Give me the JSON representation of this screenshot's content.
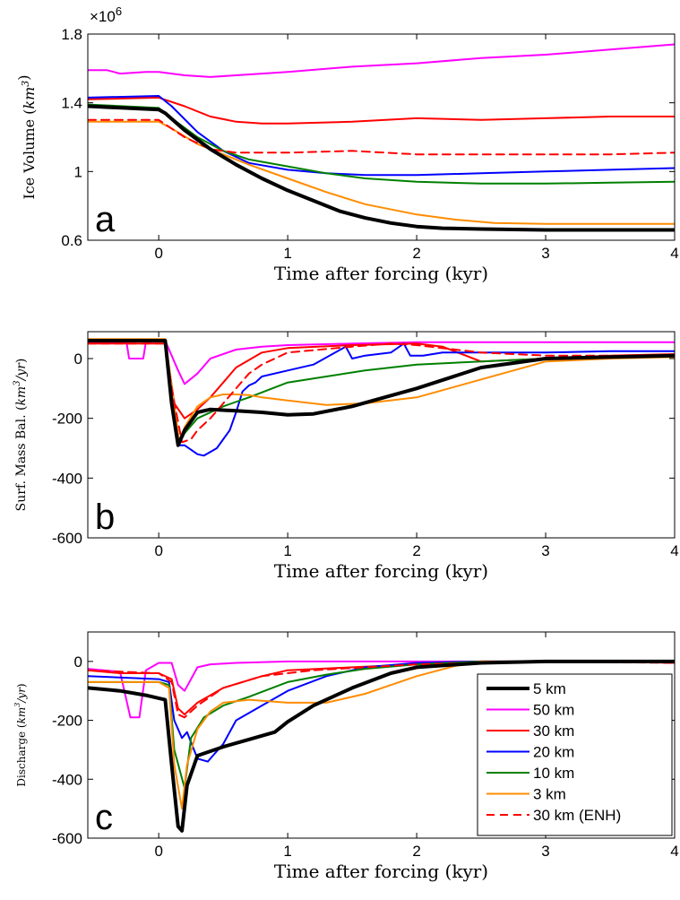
{
  "chart_data": [
    {
      "type": "line",
      "panel_label": "a",
      "xlabel": "Time after forcing (kyr)",
      "ylabel": {
        "pre": "Ice Volume (",
        "unit": "km",
        "sup": "3",
        "post": ")"
      },
      "multiplier": {
        "base": "×10",
        "exp": "6"
      },
      "xlim": [
        -0.55,
        4
      ],
      "ylim": [
        0.6,
        1.8
      ],
      "xticks": [
        0,
        1,
        2,
        3,
        4
      ],
      "xtick_labels": [
        "0",
        "1",
        "2",
        "3",
        "4"
      ],
      "yticks": [
        0.6,
        1.0,
        1.4,
        1.8
      ],
      "ytick_labels": [
        "0.6",
        "1",
        "1.4",
        "1.8"
      ],
      "grid": false,
      "series": [
        {
          "name": "5 km",
          "color": "#000000",
          "dash": false,
          "width": 4,
          "x": [
            -0.55,
            0,
            0.05,
            0.2,
            0.4,
            0.6,
            0.8,
            1.0,
            1.2,
            1.4,
            1.6,
            1.8,
            2.0,
            2.2,
            2.5,
            3.0,
            3.5,
            4.0
          ],
          "y": [
            1.38,
            1.36,
            1.34,
            1.24,
            1.13,
            1.04,
            0.96,
            0.89,
            0.83,
            0.77,
            0.73,
            0.7,
            0.68,
            0.67,
            0.665,
            0.66,
            0.66,
            0.66
          ]
        },
        {
          "name": "50 km",
          "color": "#ff00ff",
          "dash": false,
          "width": 2,
          "x": [
            -0.55,
            -0.4,
            -0.3,
            -0.1,
            0,
            0.2,
            0.4,
            0.6,
            1.0,
            1.5,
            2.0,
            2.5,
            3.0,
            3.5,
            4.0
          ],
          "y": [
            1.59,
            1.59,
            1.57,
            1.58,
            1.58,
            1.56,
            1.55,
            1.56,
            1.58,
            1.61,
            1.63,
            1.66,
            1.68,
            1.71,
            1.74
          ]
        },
        {
          "name": "30 km",
          "color": "#ff0000",
          "dash": false,
          "width": 2,
          "x": [
            -0.55,
            0,
            0.2,
            0.4,
            0.6,
            0.8,
            1.0,
            1.5,
            2.0,
            2.5,
            3.0,
            3.5,
            4.0
          ],
          "y": [
            1.42,
            1.43,
            1.38,
            1.32,
            1.29,
            1.28,
            1.28,
            1.29,
            1.31,
            1.3,
            1.31,
            1.32,
            1.32
          ]
        },
        {
          "name": "20 km",
          "color": "#0000ff",
          "dash": false,
          "width": 2,
          "x": [
            -0.55,
            0,
            0.1,
            0.3,
            0.5,
            0.7,
            1.0,
            1.3,
            1.6,
            2.0,
            2.5,
            3.0,
            3.5,
            4.0
          ],
          "y": [
            1.43,
            1.44,
            1.38,
            1.23,
            1.12,
            1.05,
            1.01,
            0.99,
            0.98,
            0.98,
            0.99,
            1.0,
            1.01,
            1.02
          ]
        },
        {
          "name": "10 km",
          "color": "#008000",
          "dash": false,
          "width": 2,
          "x": [
            -0.55,
            0,
            0.1,
            0.3,
            0.5,
            0.7,
            1.0,
            1.3,
            1.6,
            2.0,
            2.5,
            3.0,
            3.5,
            4.0
          ],
          "y": [
            1.39,
            1.37,
            1.31,
            1.2,
            1.12,
            1.07,
            1.03,
            0.99,
            0.96,
            0.94,
            0.93,
            0.93,
            0.935,
            0.94
          ]
        },
        {
          "name": "3 km",
          "color": "#ff8c00",
          "dash": false,
          "width": 2,
          "x": [
            -0.55,
            0,
            0.1,
            0.3,
            0.5,
            0.7,
            1.0,
            1.3,
            1.6,
            2.0,
            2.3,
            2.6,
            3.0,
            3.5,
            4.0
          ],
          "y": [
            1.29,
            1.29,
            1.25,
            1.16,
            1.1,
            1.04,
            0.96,
            0.88,
            0.81,
            0.75,
            0.72,
            0.7,
            0.695,
            0.695,
            0.695
          ]
        },
        {
          "name": "30 km (ENH)",
          "color": "#ff0000",
          "dash": true,
          "width": 2,
          "x": [
            -0.55,
            0,
            0.2,
            0.4,
            0.6,
            1.0,
            1.5,
            2.0,
            2.5,
            3.0,
            3.5,
            4.0
          ],
          "y": [
            1.3,
            1.3,
            1.2,
            1.13,
            1.11,
            1.11,
            1.12,
            1.1,
            1.1,
            1.1,
            1.1,
            1.11
          ]
        }
      ]
    },
    {
      "type": "line",
      "panel_label": "b",
      "xlabel": "Time after forcing (kyr)",
      "ylabel": {
        "pre": "Surf. Mass Bal. (",
        "unit": "km",
        "sup": "3",
        "post": "/yr)"
      },
      "xlim": [
        -0.55,
        4
      ],
      "ylim": [
        -600,
        90
      ],
      "xticks": [
        0,
        1,
        2,
        3,
        4
      ],
      "xtick_labels": [
        "0",
        "1",
        "2",
        "3",
        "4"
      ],
      "yticks": [
        -600,
        -400,
        -200,
        0
      ],
      "ytick_labels": [
        "-600",
        "-400",
        "-200",
        "0"
      ],
      "grid": false,
      "series": [
        {
          "name": "5 km",
          "color": "#000000",
          "dash": false,
          "width": 4,
          "x": [
            -0.55,
            0.05,
            0.1,
            0.15,
            0.2,
            0.3,
            0.4,
            0.6,
            0.8,
            1.0,
            1.2,
            1.5,
            2.0,
            2.5,
            3.0,
            3.5,
            4.0
          ],
          "y": [
            60,
            60,
            -150,
            -290,
            -240,
            -180,
            -170,
            -175,
            -180,
            -188,
            -185,
            -160,
            -100,
            -30,
            0,
            5,
            10
          ]
        },
        {
          "name": "50 km",
          "color": "#ff00ff",
          "dash": false,
          "width": 2,
          "x": [
            -0.55,
            -0.25,
            -0.23,
            -0.12,
            -0.1,
            0.05,
            0.15,
            0.2,
            0.3,
            0.4,
            0.6,
            0.8,
            1.0,
            1.5,
            2.0,
            2.5,
            3.0,
            3.5,
            4.0
          ],
          "y": [
            55,
            55,
            0,
            0,
            55,
            60,
            -40,
            -85,
            -50,
            0,
            30,
            40,
            45,
            50,
            55,
            55,
            55,
            55,
            55
          ]
        },
        {
          "name": "30 km",
          "color": "#ff0000",
          "dash": false,
          "width": 2,
          "x": [
            -0.55,
            0.05,
            0.12,
            0.2,
            0.3,
            0.4,
            0.5,
            0.6,
            0.8,
            1.0,
            1.5,
            2.0,
            2.2,
            2.5,
            3.0,
            3.5,
            4.0
          ],
          "y": [
            50,
            50,
            -150,
            -200,
            -170,
            -130,
            -80,
            -30,
            20,
            35,
            45,
            50,
            40,
            -10,
            0,
            10,
            15
          ]
        },
        {
          "name": "20 km",
          "color": "#0000ff",
          "dash": false,
          "width": 2,
          "x": [
            -0.55,
            0.05,
            0.12,
            0.16,
            0.2,
            0.3,
            0.35,
            0.45,
            0.5,
            0.55,
            0.6,
            0.65,
            0.7,
            0.75,
            0.8,
            1.0,
            1.2,
            1.45,
            1.5,
            1.6,
            1.8,
            1.9,
            1.95,
            2.05,
            2.2,
            2.5,
            3.0,
            3.5,
            4.0
          ],
          "y": [
            60,
            60,
            -150,
            -290,
            -290,
            -320,
            -325,
            -300,
            -270,
            -240,
            -180,
            -110,
            -90,
            -80,
            -60,
            -40,
            -20,
            40,
            0,
            10,
            20,
            50,
            10,
            10,
            20,
            20,
            20,
            25,
            25
          ]
        },
        {
          "name": "10 km",
          "color": "#008000",
          "dash": false,
          "width": 2,
          "x": [
            -0.55,
            0.05,
            0.12,
            0.16,
            0.2,
            0.3,
            0.5,
            0.7,
            1.0,
            1.3,
            1.6,
            2.0,
            2.5,
            3.0,
            3.5,
            4.0
          ],
          "y": [
            60,
            60,
            -180,
            -285,
            -250,
            -200,
            -160,
            -130,
            -80,
            -60,
            -40,
            -20,
            -10,
            0,
            5,
            10
          ]
        },
        {
          "name": "3 km",
          "color": "#ff8c00",
          "dash": false,
          "width": 2,
          "x": [
            -0.55,
            0.05,
            0.12,
            0.16,
            0.2,
            0.3,
            0.4,
            0.5,
            0.6,
            0.7,
            0.8,
            1.0,
            1.3,
            1.6,
            2.0,
            2.5,
            3.0,
            3.5,
            4.0
          ],
          "y": [
            65,
            65,
            -150,
            -285,
            -230,
            -160,
            -130,
            -120,
            -120,
            -122,
            -130,
            -140,
            -155,
            -150,
            -130,
            -70,
            -10,
            0,
            5
          ]
        },
        {
          "name": "30 km (ENH)",
          "color": "#ff0000",
          "dash": true,
          "width": 2,
          "x": [
            -0.55,
            0.05,
            0.1,
            0.18,
            0.25,
            0.3,
            0.4,
            0.5,
            0.6,
            0.7,
            0.8,
            1.0,
            1.5,
            1.8,
            2.0,
            2.5,
            3.0,
            3.5,
            4.0
          ],
          "y": [
            50,
            50,
            -100,
            -280,
            -270,
            -240,
            -200,
            -150,
            -100,
            -50,
            -20,
            20,
            40,
            50,
            45,
            20,
            10,
            10,
            10
          ]
        }
      ]
    },
    {
      "type": "line",
      "panel_label": "c",
      "xlabel": "Time after forcing (kyr)",
      "ylabel": {
        "pre": "Discharge (",
        "unit": "km",
        "sup": "3",
        "post": "/yr)"
      },
      "xlim": [
        -0.55,
        4
      ],
      "ylim": [
        -600,
        100
      ],
      "xticks": [
        0,
        1,
        2,
        3,
        4
      ],
      "xtick_labels": [
        "0",
        "1",
        "2",
        "3",
        "4"
      ],
      "yticks": [
        -600,
        -400,
        -200,
        0
      ],
      "ytick_labels": [
        "-600",
        "-400",
        "-200",
        "0"
      ],
      "grid": false,
      "legend_position": "bottom-right",
      "series": [
        {
          "name": "5 km",
          "color": "#000000",
          "dash": false,
          "width": 4,
          "x": [
            -0.55,
            -0.3,
            -0.1,
            0.0,
            0.05,
            0.1,
            0.15,
            0.18,
            0.22,
            0.3,
            0.5,
            0.7,
            0.9,
            1.0,
            1.2,
            1.5,
            1.8,
            2.0,
            2.5,
            3.0,
            3.5,
            4.0
          ],
          "y": [
            -90,
            -100,
            -115,
            -125,
            -130,
            -350,
            -560,
            -575,
            -420,
            -320,
            -290,
            -265,
            -240,
            -205,
            -150,
            -90,
            -40,
            -20,
            -5,
            0,
            0,
            0
          ]
        },
        {
          "name": "50 km",
          "color": "#ff00ff",
          "dash": false,
          "width": 2,
          "x": [
            -0.55,
            -0.3,
            -0.22,
            -0.15,
            -0.1,
            0.0,
            0.1,
            0.15,
            0.2,
            0.25,
            0.3,
            0.4,
            0.6,
            1.0,
            1.5,
            2.0,
            2.5,
            3.0,
            3.5,
            4.0
          ],
          "y": [
            -25,
            -35,
            -190,
            -190,
            -30,
            -5,
            -5,
            -80,
            -100,
            -60,
            -20,
            -10,
            -5,
            0,
            0,
            0,
            0,
            0,
            0,
            0
          ]
        },
        {
          "name": "30 km",
          "color": "#ff0000",
          "dash": false,
          "width": 2,
          "x": [
            -0.55,
            -0.3,
            0.0,
            0.1,
            0.15,
            0.2,
            0.3,
            0.5,
            0.8,
            1.0,
            1.5,
            2.0,
            2.5,
            3.0,
            3.5,
            4.0
          ],
          "y": [
            -30,
            -40,
            -40,
            -60,
            -160,
            -180,
            -140,
            -90,
            -50,
            -30,
            -20,
            -10,
            -5,
            0,
            0,
            -5
          ]
        },
        {
          "name": "20 km",
          "color": "#0000ff",
          "dash": false,
          "width": 2,
          "x": [
            -0.55,
            0.0,
            0.08,
            0.12,
            0.18,
            0.22,
            0.3,
            0.38,
            0.42,
            0.5,
            0.6,
            0.8,
            1.0,
            1.3,
            1.6,
            2.0,
            2.5,
            3.0,
            4.0
          ],
          "y": [
            -50,
            -60,
            -70,
            -200,
            -260,
            -240,
            -330,
            -340,
            -320,
            -280,
            -200,
            -150,
            -100,
            -50,
            -20,
            -5,
            0,
            0,
            0
          ]
        },
        {
          "name": "10 km",
          "color": "#008000",
          "dash": false,
          "width": 2,
          "x": [
            -0.55,
            0.0,
            0.08,
            0.12,
            0.2,
            0.25,
            0.35,
            0.5,
            0.7,
            1.0,
            1.3,
            1.6,
            2.0,
            2.5,
            3.0,
            4.0
          ],
          "y": [
            -70,
            -70,
            -80,
            -300,
            -430,
            -260,
            -190,
            -150,
            -120,
            -70,
            -45,
            -25,
            -10,
            0,
            0,
            0
          ]
        },
        {
          "name": "3 km",
          "color": "#ff8c00",
          "dash": false,
          "width": 2,
          "x": [
            -0.55,
            0.0,
            0.08,
            0.12,
            0.18,
            0.22,
            0.3,
            0.4,
            0.5,
            0.7,
            1.0,
            1.3,
            1.6,
            2.0,
            2.3,
            2.5,
            3.0,
            4.0
          ],
          "y": [
            -70,
            -70,
            -90,
            -350,
            -500,
            -350,
            -230,
            -170,
            -140,
            -130,
            -140,
            -140,
            -110,
            -50,
            -15,
            0,
            0,
            0
          ]
        },
        {
          "name": "30 km (ENH)",
          "color": "#ff0000",
          "dash": true,
          "width": 2,
          "x": [
            -0.55,
            0.0,
            0.1,
            0.15,
            0.2,
            0.3,
            0.5,
            0.8,
            1.2,
            1.6,
            2.0,
            2.5,
            3.0,
            4.0
          ],
          "y": [
            -30,
            -40,
            -70,
            -180,
            -190,
            -150,
            -90,
            -50,
            -30,
            -20,
            -10,
            -5,
            0,
            -5
          ]
        }
      ]
    }
  ]
}
